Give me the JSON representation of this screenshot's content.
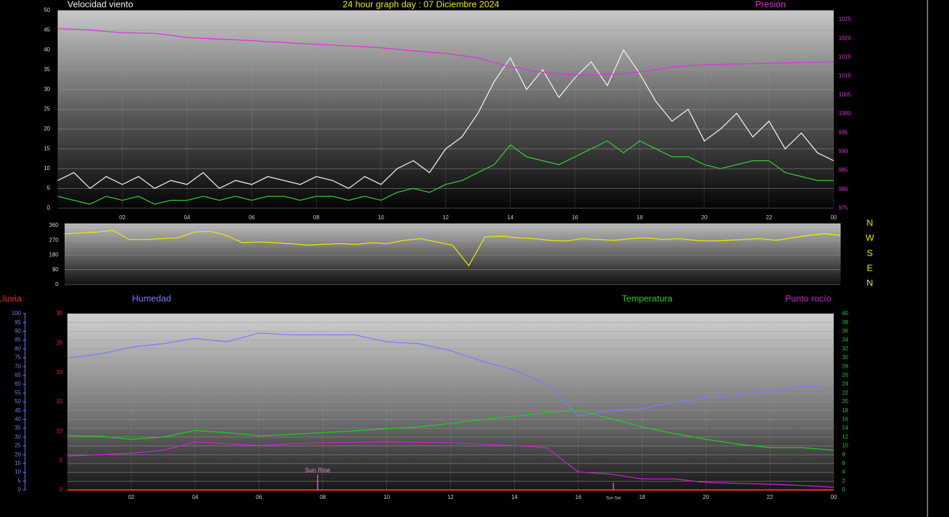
{
  "chart_data": [
    {
      "type": "line",
      "title": "24 hour graph day : 07 Diciembre 2024",
      "x": [
        0,
        0.5,
        1,
        1.5,
        2,
        2.5,
        3,
        3.5,
        4,
        4.5,
        5,
        5.5,
        6,
        6.5,
        7,
        7.5,
        8,
        8.5,
        9,
        9.5,
        10,
        10.5,
        11,
        11.5,
        12,
        12.5,
        13,
        13.5,
        14,
        14.5,
        15,
        15.5,
        16,
        16.5,
        17,
        17.5,
        18,
        18.5,
        19,
        19.5,
        20,
        20.5,
        21,
        21.5,
        22,
        22.5,
        23,
        23.5,
        24
      ],
      "xlim": [
        0,
        24
      ],
      "xticks": [
        {
          "value": 2,
          "label": "02"
        },
        {
          "value": 4,
          "label": "04"
        },
        {
          "value": 6,
          "label": "06"
        },
        {
          "value": 8,
          "label": "08"
        },
        10,
        12,
        14,
        16,
        18,
        20,
        22,
        {
          "value": 24,
          "label": "00"
        }
      ],
      "ylim": [
        0,
        50
      ],
      "yticks": [
        0,
        5,
        10,
        15,
        20,
        25,
        30,
        35,
        40,
        45,
        50
      ],
      "y2lim": [
        975,
        1025
      ],
      "y2ticks": [
        975,
        980,
        985,
        990,
        995,
        1000,
        1005,
        1010,
        1015,
        1020,
        1025
      ],
      "grid": true,
      "series": [
        {
          "name": "Velocidad viento",
          "color": "#f0f0f0",
          "values": [
            7,
            9,
            5,
            8,
            6,
            8,
            5,
            7,
            6,
            9,
            5,
            7,
            6,
            8,
            7,
            6,
            8,
            7,
            5,
            8,
            6,
            10,
            12,
            9,
            15,
            18,
            24,
            32,
            38,
            30,
            35,
            28,
            33,
            37,
            31,
            40,
            34,
            27,
            22,
            25,
            17,
            20,
            24,
            18,
            22,
            15,
            19,
            14,
            12
          ]
        },
        {
          "color": "#33cc33",
          "values": [
            3,
            2,
            1,
            3,
            2,
            3,
            1,
            2,
            2,
            3,
            2,
            3,
            2,
            3,
            3,
            2,
            3,
            3,
            2,
            3,
            2,
            4,
            5,
            4,
            6,
            7,
            9,
            11,
            16,
            13,
            12,
            11,
            13,
            15,
            17,
            14,
            17,
            15,
            13,
            13,
            11,
            10,
            11,
            12,
            12,
            9,
            8,
            7,
            7
          ]
        },
        {
          "name": "Presión",
          "color": "#dd33dd",
          "axis": "y2",
          "values": [
            1022.6,
            1022.4,
            1022.2,
            1021.8,
            1021.5,
            1021.4,
            1021.3,
            1020.8,
            1020.2,
            1020,
            1019.8,
            1019.6,
            1019.4,
            1019.1,
            1018.9,
            1018.6,
            1018.4,
            1018.2,
            1018,
            1017.8,
            1017.5,
            1017.1,
            1016.7,
            1016.3,
            1016,
            1015.4,
            1014.8,
            1013.6,
            1012.5,
            1011.7,
            1011,
            1010.6,
            1010.3,
            1010.3,
            1010.4,
            1010.7,
            1011.1,
            1011.7,
            1012.4,
            1012.7,
            1013,
            1013.1,
            1013.2,
            1013.3,
            1013.4,
            1013.5,
            1013.6,
            1013.7,
            1013.8
          ]
        }
      ]
    },
    {
      "type": "line",
      "x": [
        0,
        0.5,
        1,
        1.5,
        2,
        2.5,
        3,
        3.5,
        4,
        4.5,
        5,
        5.5,
        6,
        6.5,
        7,
        7.5,
        8,
        8.5,
        9,
        9.5,
        10,
        10.5,
        11,
        11.5,
        12,
        12.5,
        13,
        13.5,
        14,
        14.5,
        15,
        15.5,
        16,
        16.5,
        17,
        17.5,
        18,
        18.5,
        19,
        19.5,
        20,
        20.5,
        21,
        21.5,
        22,
        22.5,
        23,
        23.5,
        24
      ],
      "xlim": [
        0,
        24
      ],
      "ylim": [
        0,
        360
      ],
      "yticks": [
        0,
        90,
        180,
        270,
        360
      ],
      "grid": true,
      "direction_labels": [
        "N",
        "W",
        "S",
        "E",
        "N"
      ],
      "series": [
        {
          "color": "#e8e800",
          "values": [
            310,
            315,
            320,
            330,
            275,
            275,
            280,
            285,
            320,
            325,
            300,
            255,
            260,
            255,
            250,
            240,
            245,
            250,
            245,
            255,
            250,
            270,
            280,
            260,
            240,
            115,
            290,
            295,
            285,
            280,
            270,
            265,
            280,
            275,
            270,
            280,
            285,
            275,
            280,
            270,
            265,
            270,
            275,
            280,
            270,
            285,
            300,
            310,
            300
          ]
        }
      ]
    },
    {
      "type": "line",
      "x": [
        0,
        1,
        2,
        3,
        4,
        5,
        6,
        7,
        8,
        9,
        10,
        11,
        12,
        13,
        14,
        15,
        16,
        17,
        18,
        19,
        20,
        21,
        22,
        23,
        24
      ],
      "xlim": [
        0,
        24
      ],
      "xticks": [
        {
          "value": 2,
          "label": "02"
        },
        {
          "value": 4,
          "label": "04"
        },
        {
          "value": 6,
          "label": "06"
        },
        {
          "value": 8,
          "label": "08"
        },
        10,
        12,
        14,
        16,
        18,
        20,
        22,
        {
          "value": 24,
          "label": "00"
        }
      ],
      "ylim": [
        0,
        100
      ],
      "yticks": [
        0,
        5,
        10,
        15,
        20,
        25,
        30,
        35,
        40,
        45,
        50,
        55,
        60,
        65,
        70,
        75,
        80,
        85,
        90,
        95,
        100
      ],
      "y2lim": [
        0,
        40
      ],
      "y2ticks": [
        0,
        2,
        4,
        6,
        8,
        10,
        12,
        14,
        16,
        18,
        20,
        22,
        24,
        26,
        28,
        30,
        32,
        34,
        36,
        38,
        40
      ],
      "y3lim": [
        0,
        30
      ],
      "y3ticks": [
        0,
        5,
        10,
        15,
        20,
        25,
        30
      ],
      "grid": true,
      "series": [
        {
          "name": "Lluvia",
          "color": "#ff2222",
          "axis": "y3",
          "values": [
            0,
            0,
            0,
            0,
            0,
            0,
            0,
            0,
            0,
            0,
            0,
            0,
            0,
            0,
            0,
            0,
            0,
            0,
            0,
            0,
            0,
            0,
            0,
            0,
            0
          ]
        },
        {
          "name": "Humedad",
          "color": "#7b7bff",
          "values": [
            75,
            77,
            81,
            83,
            86,
            84,
            89,
            88,
            88,
            88,
            84,
            83,
            79,
            73,
            68,
            60,
            42,
            45,
            46,
            50,
            52,
            54,
            56,
            59,
            58
          ]
        },
        {
          "name": "Temperatura",
          "color": "#22cc22",
          "axis": "y2",
          "values": [
            12.3,
            12.2,
            11.5,
            12,
            13.5,
            13,
            12.3,
            12.6,
            13,
            13.4,
            13.9,
            14.3,
            15.1,
            16,
            16.7,
            17.6,
            18,
            16.2,
            14.3,
            12.8,
            11.5,
            10.4,
            9.6,
            9.6,
            9
          ]
        },
        {
          "name": "Punto rocío",
          "color": "#cc22cc",
          "axis": "y2",
          "values": [
            7.7,
            8,
            8.3,
            9,
            10.9,
            10.5,
            10.1,
            10.5,
            10.7,
            10.8,
            10.9,
            10.8,
            10.7,
            10.4,
            10.1,
            9.6,
            4.1,
            3.6,
            2.5,
            2.5,
            1.7,
            1.5,
            1.3,
            1,
            0.6
          ]
        }
      ],
      "annotations": [
        {
          "text": "Sun Rise",
          "x": 7.84
        },
        {
          "text": "Sun Set",
          "x": 17.1
        }
      ]
    }
  ]
}
